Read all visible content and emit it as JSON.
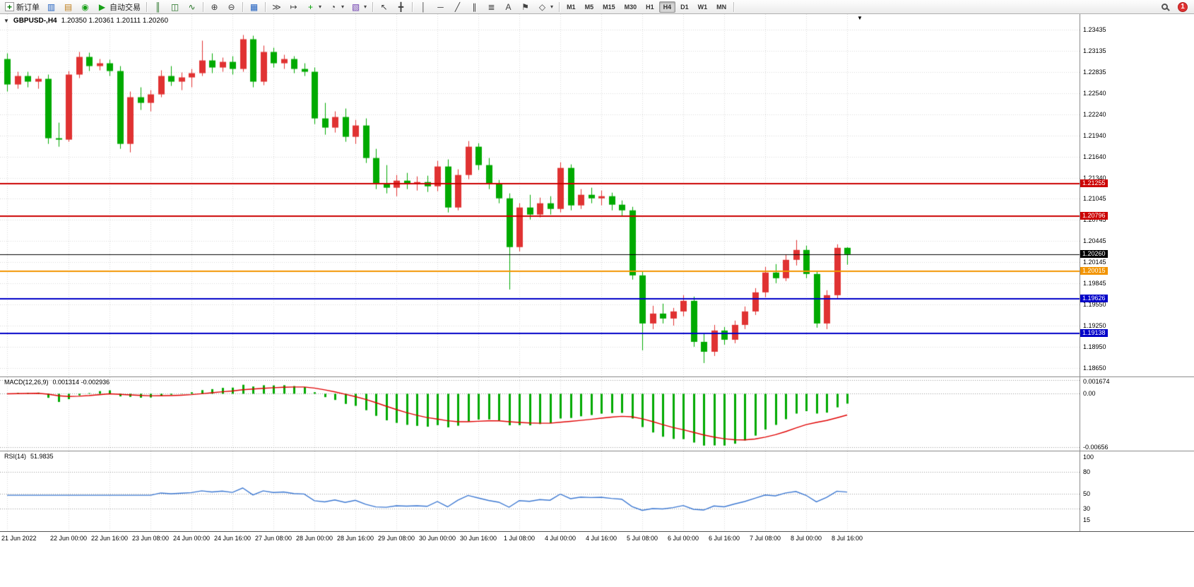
{
  "toolbar": {
    "notification_count": "1",
    "active_timeframe": "H4",
    "timeframes": [
      "M1",
      "M5",
      "M15",
      "M30",
      "H1",
      "H4",
      "D1",
      "W1",
      "MN"
    ],
    "groups": [
      {
        "items": [
          {
            "name": "new-order-button",
            "icon": "new-order-icon",
            "label": "新订单"
          },
          {
            "name": "new-chart-button",
            "icon": "chart-window-icon"
          },
          {
            "name": "profiles-button",
            "icon": "profiles-icon"
          },
          {
            "name": "market-watch-button",
            "icon": "market-watch-icon"
          },
          {
            "name": "auto-trading-button",
            "icon": "auto-trading-icon",
            "label": "自动交易"
          }
        ]
      },
      {
        "items": [
          {
            "name": "bar-chart-button",
            "icon": "bar-chart-icon"
          },
          {
            "name": "candlestick-button",
            "icon": "candlestick-icon"
          },
          {
            "name": "line-chart-button",
            "icon": "line-chart-icon"
          }
        ]
      },
      {
        "items": [
          {
            "name": "zoom-in-button",
            "icon": "zoom-in-icon"
          },
          {
            "name": "zoom-out-button",
            "icon": "zoom-out-icon"
          }
        ]
      },
      {
        "items": [
          {
            "name": "tile-windows-button",
            "icon": "tile-windows-icon"
          }
        ]
      },
      {
        "items": [
          {
            "name": "auto-scroll-button",
            "icon": "auto-scroll-icon"
          },
          {
            "name": "chart-shift-button",
            "icon": "chart-shift-icon"
          },
          {
            "name": "indicators-button",
            "icon": "indicators-icon",
            "dropdown": true
          },
          {
            "name": "periods-button",
            "icon": "clock-icon",
            "dropdown": true
          },
          {
            "name": "templates-button",
            "icon": "template-icon",
            "dropdown": true
          }
        ]
      },
      {
        "items": [
          {
            "name": "cursor-button",
            "icon": "cursor-icon"
          },
          {
            "name": "crosshair-button",
            "icon": "crosshair-icon"
          }
        ]
      },
      {
        "items": [
          {
            "name": "vertical-line-button",
            "icon": "vertical-line-icon"
          },
          {
            "name": "horizontal-line-button",
            "icon": "horizontal-line-icon"
          },
          {
            "name": "trendline-button",
            "icon": "trendline-icon"
          },
          {
            "name": "channel-button",
            "icon": "channel-icon"
          },
          {
            "name": "fibonacci-button",
            "icon": "fibonacci-icon"
          },
          {
            "name": "text-button",
            "icon": "text-icon"
          },
          {
            "name": "label-button",
            "icon": "label-icon"
          },
          {
            "name": "shapes-button",
            "icon": "shapes-icon",
            "dropdown": true
          }
        ]
      }
    ]
  },
  "chart": {
    "symbol_title": "GBPUSD-,H4",
    "ohlc_quote": "1.20350 1.20361 1.20111 1.20260"
  },
  "chart_data": {
    "type": "candlestick",
    "symbol": "GBPUSD-",
    "timeframe": "H4",
    "current_ohlc": {
      "open": "1.20350",
      "high": "1.20361",
      "low": "1.20111",
      "close": "1.20260"
    },
    "y_range": [
      1.1853,
      1.23655
    ],
    "up_color": "#E03232",
    "down_color": "#00AA00",
    "grid_color": "#DADADA",
    "price_axis": [
      "1.23435",
      "1.23135",
      "1.22835",
      "1.22540",
      "1.22240",
      "1.21940",
      "1.21640",
      "1.21340",
      "1.21045",
      "1.20745",
      "1.20445",
      "1.20145",
      "1.19845",
      "1.19550",
      "1.19250",
      "1.18950",
      "1.18650"
    ],
    "time_labels": [
      {
        "index": 0,
        "label": "21 Jun 2022"
      },
      {
        "index": 6,
        "label": "22 Jun 00:00"
      },
      {
        "index": 10,
        "label": "22 Jun 16:00"
      },
      {
        "index": 14,
        "label": "23 Jun 08:00"
      },
      {
        "index": 18,
        "label": "24 Jun 00:00"
      },
      {
        "index": 22,
        "label": "24 Jun 16:00"
      },
      {
        "index": 26,
        "label": "27 Jun 08:00"
      },
      {
        "index": 30,
        "label": "28 Jun 00:00"
      },
      {
        "index": 34,
        "label": "28 Jun 16:00"
      },
      {
        "index": 38,
        "label": "29 Jun 08:00"
      },
      {
        "index": 42,
        "label": "30 Jun 00:00"
      },
      {
        "index": 46,
        "label": "30 Jun 16:00"
      },
      {
        "index": 50,
        "label": "1 Jul 08:00"
      },
      {
        "index": 54,
        "label": "4 Jul 00:00"
      },
      {
        "index": 58,
        "label": "4 Jul 16:00"
      },
      {
        "index": 62,
        "label": "5 Jul 08:00"
      },
      {
        "index": 66,
        "label": "6 Jul 00:00"
      },
      {
        "index": 70,
        "label": "6 Jul 16:00"
      },
      {
        "index": 74,
        "label": "7 Jul 08:00"
      },
      {
        "index": 78,
        "label": "8 Jul 00:00"
      },
      {
        "index": 82,
        "label": "8 Jul 16:00"
      }
    ],
    "horizontal_lines": [
      {
        "price": 1.21255,
        "label": "1.21255",
        "color": "#CC0000",
        "width": 2
      },
      {
        "price": 1.20796,
        "label": "1.20796",
        "color": "#CC0000",
        "width": 2
      },
      {
        "price": 1.2026,
        "label": "1.20260",
        "color": "#000000",
        "width": 1
      },
      {
        "price": 1.20015,
        "label": "1.20015",
        "color": "#F29400",
        "width": 2
      },
      {
        "price": 1.19626,
        "label": "1.19626",
        "color": "#0000C8",
        "width": 2
      },
      {
        "price": 1.19138,
        "label": "1.19138",
        "color": "#0000C8",
        "width": 2
      }
    ],
    "candles": [
      [
        1.2302,
        1.231,
        1.2256,
        1.2266
      ],
      [
        1.2266,
        1.2284,
        1.226,
        1.2278
      ],
      [
        1.2278,
        1.2284,
        1.2262,
        1.227
      ],
      [
        1.227,
        1.2278,
        1.226,
        1.2274
      ],
      [
        1.2274,
        1.228,
        1.2182,
        1.219
      ],
      [
        1.219,
        1.2212,
        1.2178,
        1.2188
      ],
      [
        1.2188,
        1.2285,
        1.2185,
        1.228
      ],
      [
        1.228,
        1.2312,
        1.2275,
        1.2305
      ],
      [
        1.2305,
        1.2311,
        1.2285,
        1.2292
      ],
      [
        1.2292,
        1.2302,
        1.2286,
        1.2296
      ],
      [
        1.2296,
        1.2301,
        1.2278,
        1.2285
      ],
      [
        1.2285,
        1.2292,
        1.2175,
        1.2182
      ],
      [
        1.2182,
        1.2256,
        1.217,
        1.2248
      ],
      [
        1.2248,
        1.2262,
        1.223,
        1.224
      ],
      [
        1.224,
        1.2258,
        1.2228,
        1.2252
      ],
      [
        1.2252,
        1.2286,
        1.2248,
        1.2278
      ],
      [
        1.2278,
        1.2292,
        1.2264,
        1.227
      ],
      [
        1.227,
        1.2283,
        1.2258,
        1.2276
      ],
      [
        1.2276,
        1.2288,
        1.2262,
        1.2282
      ],
      [
        1.2282,
        1.2328,
        1.2278,
        1.23
      ],
      [
        1.23,
        1.231,
        1.2282,
        1.229
      ],
      [
        1.229,
        1.2304,
        1.2284,
        1.2298
      ],
      [
        1.2298,
        1.2306,
        1.228,
        1.2288
      ],
      [
        1.2288,
        1.2336,
        1.2284,
        1.233
      ],
      [
        1.233,
        1.2335,
        1.2262,
        1.227
      ],
      [
        1.227,
        1.2321,
        1.2265,
        1.2312
      ],
      [
        1.2312,
        1.2318,
        1.229,
        1.2296
      ],
      [
        1.2296,
        1.2308,
        1.2288,
        1.2302
      ],
      [
        1.2302,
        1.2306,
        1.2282,
        1.2288
      ],
      [
        1.2288,
        1.2296,
        1.2278,
        1.2284
      ],
      [
        1.2284,
        1.229,
        1.221,
        1.2218
      ],
      [
        1.2218,
        1.224,
        1.2195,
        1.2205
      ],
      [
        1.2205,
        1.2228,
        1.2198,
        1.222
      ],
      [
        1.222,
        1.2232,
        1.2185,
        1.2192
      ],
      [
        1.2192,
        1.2216,
        1.2182,
        1.2208
      ],
      [
        1.2208,
        1.2218,
        1.2155,
        1.2162
      ],
      [
        1.2162,
        1.2175,
        1.2118,
        1.2125
      ],
      [
        1.2125,
        1.2152,
        1.2112,
        1.212
      ],
      [
        1.212,
        1.2138,
        1.2108,
        1.213
      ],
      [
        1.213,
        1.2141,
        1.2118,
        1.2126
      ],
      [
        1.2126,
        1.2136,
        1.2116,
        1.2128
      ],
      [
        1.2128,
        1.2137,
        1.2114,
        1.2122
      ],
      [
        1.2122,
        1.2158,
        1.2115,
        1.215
      ],
      [
        1.215,
        1.216,
        1.2085,
        1.2092
      ],
      [
        1.2092,
        1.2146,
        1.2088,
        1.2138
      ],
      [
        1.2138,
        1.2186,
        1.2132,
        1.2178
      ],
      [
        1.2178,
        1.2183,
        1.2145,
        1.2152
      ],
      [
        1.2152,
        1.2162,
        1.2118,
        1.2125
      ],
      [
        1.2125,
        1.2131,
        1.2098,
        1.2105
      ],
      [
        1.2105,
        1.2112,
        1.1976,
        1.2036
      ],
      [
        1.2036,
        1.2098,
        1.203,
        1.2092
      ],
      [
        1.2092,
        1.211,
        1.2075,
        1.2082
      ],
      [
        1.2082,
        1.2106,
        1.2078,
        1.2098
      ],
      [
        1.2098,
        1.2108,
        1.2082,
        1.209
      ],
      [
        1.209,
        1.2156,
        1.2085,
        1.2148
      ],
      [
        1.2148,
        1.2153,
        1.2088,
        1.2095
      ],
      [
        1.2095,
        1.2118,
        1.209,
        1.211
      ],
      [
        1.211,
        1.212,
        1.2098,
        1.2105
      ],
      [
        1.2105,
        1.2116,
        1.2095,
        1.2108
      ],
      [
        1.2108,
        1.2113,
        1.2088,
        1.2096
      ],
      [
        1.2096,
        1.2102,
        1.208,
        1.2088
      ],
      [
        1.2088,
        1.2093,
        1.199,
        1.1996
      ],
      [
        1.1996,
        1.2002,
        1.189,
        1.1928
      ],
      [
        1.1928,
        1.1953,
        1.192,
        1.1942
      ],
      [
        1.1942,
        1.1956,
        1.1928,
        1.1935
      ],
      [
        1.1935,
        1.195,
        1.1925,
        1.1945
      ],
      [
        1.1945,
        1.1968,
        1.1938,
        1.196
      ],
      [
        1.196,
        1.1966,
        1.1895,
        1.1902
      ],
      [
        1.1902,
        1.1913,
        1.1872,
        1.1888
      ],
      [
        1.1888,
        1.1926,
        1.1882,
        1.1918
      ],
      [
        1.1918,
        1.1923,
        1.1898,
        1.1905
      ],
      [
        1.1905,
        1.1932,
        1.19,
        1.1926
      ],
      [
        1.1926,
        1.1952,
        1.192,
        1.1945
      ],
      [
        1.1945,
        1.1978,
        1.194,
        1.1972
      ],
      [
        1.1972,
        1.2008,
        1.1965,
        1.2
      ],
      [
        1.2,
        1.2012,
        1.1985,
        1.1992
      ],
      [
        1.1992,
        1.2025,
        1.1988,
        1.2018
      ],
      [
        1.2018,
        1.2046,
        1.201,
        1.2032
      ],
      [
        1.2032,
        1.2038,
        1.1992,
        1.1998
      ],
      [
        1.1998,
        1.2002,
        1.1922,
        1.1928
      ],
      [
        1.1928,
        1.1975,
        1.192,
        1.1968
      ],
      [
        1.1968,
        1.204,
        1.1962,
        1.2035
      ],
      [
        1.2035,
        1.20361,
        1.20111,
        1.2026
      ]
    ],
    "macd": {
      "title": "MACD(12,26,9)",
      "values_text": "0.001314 -0.002936",
      "params": [
        12,
        26,
        9
      ],
      "axis": [
        {
          "label": "0.001674",
          "value": 0.001674
        },
        {
          "label": "0.00",
          "value": 0
        },
        {
          "label": "-0.00656",
          "value": -0.00656
        }
      ],
      "range": [
        -0.00701,
        0.00204
      ],
      "histogram_color": "#00AA00",
      "signal_color": "#E00000"
    },
    "rsi": {
      "title": "RSI(14)",
      "value_text": "51.9835",
      "period": 14,
      "axis": [
        {
          "label": "100",
          "value": 100
        },
        {
          "label": "80",
          "value": 80
        },
        {
          "label": "50",
          "value": 50
        },
        {
          "label": "30",
          "value": 30
        },
        {
          "label": "15",
          "value": 15
        }
      ],
      "levels": [
        80,
        50,
        30
      ],
      "range": [
        0,
        107.6
      ],
      "line_color": "#3C78D2"
    }
  }
}
